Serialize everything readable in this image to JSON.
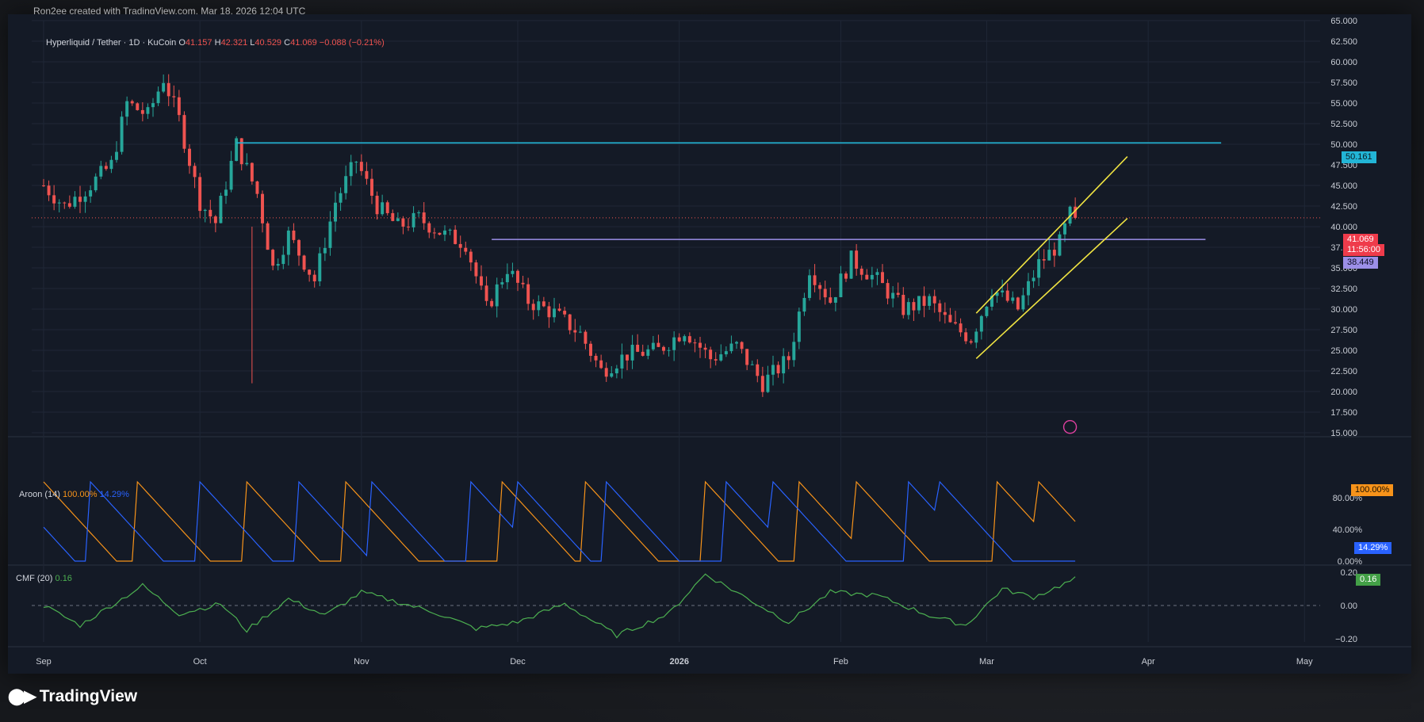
{
  "byline": "Ron2ee created with TradingView.com, Mar 18, 2026 12:04 UTC",
  "brand": {
    "name": "TradingView",
    "logo_icon": "tradingview-logo-icon"
  },
  "legend": {
    "symbol": "Hyperliquid / Tether · 1D · KuCoin",
    "o_label": "O",
    "o_value": "41.157",
    "h_label": "H",
    "h_value": "42.321",
    "l_label": "L",
    "l_value": "40.529",
    "c_label": "C",
    "c_value": "41.069",
    "change": "−0.088 (−0.21%)"
  },
  "aroon_legend": {
    "name": "Aroon (14)",
    "up": "100.00%",
    "down": "14.29%"
  },
  "cmf_legend": {
    "name": "CMF (20)",
    "value": "0.16"
  },
  "price_tags": {
    "resistance": "50.161",
    "last_price": "41.069",
    "countdown": "11:56:00",
    "support": "38.449",
    "aroon_up": "100.00%",
    "aroon_down": "14.29%",
    "cmf": "0.16"
  },
  "colors": {
    "up": "#26a69a",
    "down": "#ef5350",
    "resistance": "#22b5d6",
    "support": "#9c8fe8",
    "channel": "#f0e442",
    "aroon_up": "#f7931a",
    "aroon_down": "#2962ff",
    "cmf": "#4caf50"
  },
  "chart_data": {
    "type": "candlestick",
    "main_price_axis": [
      "65.000",
      "62.500",
      "60.000",
      "57.500",
      "55.000",
      "52.500",
      "50.000",
      "47.500",
      "45.000",
      "42.500",
      "40.000",
      "37.500",
      "35.000",
      "32.500",
      "30.000",
      "27.500",
      "25.000",
      "22.500",
      "20.000",
      "17.500",
      "15.000"
    ],
    "aroon_axis": [
      "80.00%",
      "40.00%",
      "0.00%"
    ],
    "cmf_axis": [
      "0.20",
      "0.00",
      "−0.20"
    ],
    "x_axis": [
      "Sep",
      "Oct",
      "Nov",
      "Dec",
      "2026",
      "Feb",
      "Mar",
      "Apr",
      "May"
    ],
    "ylim": [
      15,
      65
    ],
    "price_anchors": [
      {
        "date": "Sep 01",
        "close": 45.0
      },
      {
        "date": "Sep 05",
        "close": 42.5
      },
      {
        "date": "Sep 09",
        "close": 44.5
      },
      {
        "date": "Sep 14",
        "close": 47.5
      },
      {
        "date": "Sep 17",
        "close": 55.0
      },
      {
        "date": "Sep 21",
        "close": 53.5
      },
      {
        "date": "Sep 24",
        "close": 58.0
      },
      {
        "date": "Sep 27",
        "close": 53.0
      },
      {
        "date": "Oct 01",
        "close": 43.0
      },
      {
        "date": "Oct 04",
        "close": 40.5
      },
      {
        "date": "Oct 08",
        "close": 50.0
      },
      {
        "date": "Oct 12",
        "close": 44.0
      },
      {
        "date": "Oct 15",
        "close": 35.0
      },
      {
        "date": "Oct 18",
        "close": 39.0
      },
      {
        "date": "Oct 23",
        "close": 33.5
      },
      {
        "date": "Oct 27",
        "close": 43.0
      },
      {
        "date": "Oct 31",
        "close": 48.0
      },
      {
        "date": "Nov 04",
        "close": 42.5
      },
      {
        "date": "Nov 08",
        "close": 40.0
      },
      {
        "date": "Nov 12",
        "close": 41.0
      },
      {
        "date": "Nov 17",
        "close": 39.0
      },
      {
        "date": "Nov 21",
        "close": 38.0
      },
      {
        "date": "Nov 25",
        "close": 30.0
      },
      {
        "date": "Nov 29",
        "close": 35.0
      },
      {
        "date": "Dec 03",
        "close": 31.0
      },
      {
        "date": "Dec 08",
        "close": 29.5
      },
      {
        "date": "Dec 13",
        "close": 27.0
      },
      {
        "date": "Dec 17",
        "close": 22.5
      },
      {
        "date": "Dec 22",
        "close": 24.5
      },
      {
        "date": "Dec 28",
        "close": 25.0
      },
      {
        "date": "Jan 02",
        "close": 27.5
      },
      {
        "date": "Jan 07",
        "close": 24.0
      },
      {
        "date": "Jan 12",
        "close": 25.5
      },
      {
        "date": "Jan 17",
        "close": 21.0
      },
      {
        "date": "Jan 22",
        "close": 24.0
      },
      {
        "date": "Jan 26",
        "close": 35.0
      },
      {
        "date": "Jan 30",
        "close": 31.0
      },
      {
        "date": "Feb 03",
        "close": 36.0
      },
      {
        "date": "Feb 08",
        "close": 33.5
      },
      {
        "date": "Feb 13",
        "close": 30.0
      },
      {
        "date": "Feb 18",
        "close": 31.0
      },
      {
        "date": "Feb 22",
        "close": 28.0
      },
      {
        "date": "Feb 26",
        "close": 26.5
      },
      {
        "date": "Mar 02",
        "close": 32.5
      },
      {
        "date": "Mar 07",
        "close": 30.0
      },
      {
        "date": "Mar 11",
        "close": 35.5
      },
      {
        "date": "Mar 15",
        "close": 38.0
      },
      {
        "date": "Mar 17",
        "close": 41.5
      },
      {
        "date": "Mar 18",
        "close": 41.069
      }
    ],
    "horizontal_lines": [
      {
        "name": "resistance",
        "price": 50.161
      },
      {
        "name": "support",
        "price": 38.449
      }
    ],
    "channel_lines": [
      {
        "name": "upper",
        "from": {
          "date": "Feb 27",
          "price": 29.5
        },
        "to": {
          "date": "Mar 28",
          "price": 48.5
        }
      },
      {
        "name": "lower",
        "from": {
          "date": "Feb 27",
          "price": 24.0
        },
        "to": {
          "date": "Mar 28",
          "price": 41.0
        }
      }
    ],
    "aroon": {
      "period": 14,
      "last_up": 100.0,
      "last_down": 14.29,
      "up_peaks": [
        "Sep 01",
        "Sep 19",
        "Oct 10",
        "Oct 29",
        "Nov 28",
        "Dec 14",
        "Jan 06",
        "Jan 24",
        "Feb 04",
        "Mar 03",
        "Mar 11"
      ],
      "down_peaks": [
        "Sep 10",
        "Oct 01",
        "Oct 20",
        "Nov 03",
        "Nov 22",
        "Dec 01",
        "Dec 18",
        "Jan 10",
        "Jan 19",
        "Feb 14",
        "Feb 20"
      ]
    },
    "cmf": {
      "period": 20,
      "last": 0.16,
      "anchors": [
        {
          "date": "Sep 01",
          "v": 0.0
        },
        {
          "date": "Sep 08",
          "v": -0.12
        },
        {
          "date": "Sep 15",
          "v": 0.02
        },
        {
          "date": "Sep 20",
          "v": 0.12
        },
        {
          "date": "Sep 27",
          "v": -0.05
        },
        {
          "date": "Oct 05",
          "v": 0.01
        },
        {
          "date": "Oct 10",
          "v": -0.15
        },
        {
          "date": "Oct 18",
          "v": 0.04
        },
        {
          "date": "Oct 25",
          "v": -0.06
        },
        {
          "date": "Nov 01",
          "v": 0.08
        },
        {
          "date": "Nov 08",
          "v": 0.02
        },
        {
          "date": "Nov 15",
          "v": -0.04
        },
        {
          "date": "Nov 23",
          "v": -0.14
        },
        {
          "date": "Dec 01",
          "v": -0.1
        },
        {
          "date": "Dec 10",
          "v": 0.01
        },
        {
          "date": "Dec 20",
          "v": -0.18
        },
        {
          "date": "Dec 30",
          "v": -0.05
        },
        {
          "date": "Jan 06",
          "v": 0.19
        },
        {
          "date": "Jan 12",
          "v": 0.08
        },
        {
          "date": "Jan 22",
          "v": -0.1
        },
        {
          "date": "Jan 30",
          "v": 0.08
        },
        {
          "date": "Feb 08",
          "v": 0.06
        },
        {
          "date": "Feb 18",
          "v": -0.06
        },
        {
          "date": "Feb 25",
          "v": -0.12
        },
        {
          "date": "Mar 04",
          "v": 0.1
        },
        {
          "date": "Mar 10",
          "v": 0.05
        },
        {
          "date": "Mar 18",
          "v": 0.16
        }
      ]
    }
  }
}
